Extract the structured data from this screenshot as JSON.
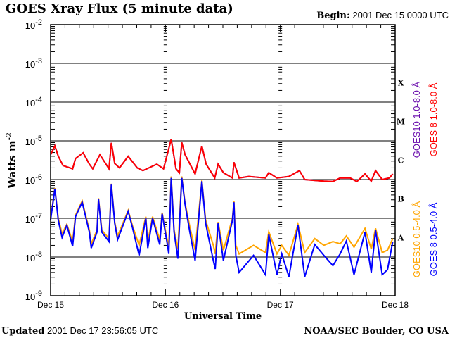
{
  "chart_data": {
    "type": "line",
    "title": "GOES Xray Flux (5 minute data)",
    "begin_label": "Begin:",
    "begin_value": "2001 Dec 15 0000 UTC",
    "xlabel": "Universal Time",
    "ylabel": "Watts m",
    "ylabel_sup": "-2",
    "yscale": "log",
    "ylim": [
      1e-09,
      0.01
    ],
    "xlim_hours": [
      0,
      72
    ],
    "x_ticks": [
      {
        "hour": 0,
        "label": "Dec 15"
      },
      {
        "hour": 24,
        "label": "Dec 16"
      },
      {
        "hour": 48,
        "label": "Dec 17"
      },
      {
        "hour": 72,
        "label": "Dec 18"
      }
    ],
    "y_ticks": [
      {
        "exp": -2,
        "base": "10",
        "sup": "-2"
      },
      {
        "exp": -3,
        "base": "10",
        "sup": "-3"
      },
      {
        "exp": -4,
        "base": "10",
        "sup": "-4"
      },
      {
        "exp": -5,
        "base": "10",
        "sup": "-5"
      },
      {
        "exp": -6,
        "base": "10",
        "sup": "-6"
      },
      {
        "exp": -7,
        "base": "10",
        "sup": "-7"
      },
      {
        "exp": -8,
        "base": "10",
        "sup": "-8"
      },
      {
        "exp": -9,
        "base": "10",
        "sup": "-9"
      }
    ],
    "flare_classes": [
      {
        "label": "X",
        "exp": -3.5
      },
      {
        "label": "M",
        "exp": -4.5
      },
      {
        "label": "C",
        "exp": -5.5
      },
      {
        "label": "B",
        "exp": -6.5
      },
      {
        "label": "A",
        "exp": -7.5
      }
    ],
    "grid": true,
    "legend_placement": "right (rotated)",
    "series": [
      {
        "name": "GOES10 1.0-8.0 Å",
        "color": "#6a0dad",
        "points": [
          [
            0,
            4.4e-06
          ],
          [
            0.9,
            7.4e-06
          ],
          [
            1.6,
            4e-06
          ],
          [
            2.6,
            2.3e-06
          ],
          [
            4.6,
            1.9e-06
          ],
          [
            5.2,
            3.5e-06
          ],
          [
            6.8,
            4.9e-06
          ],
          [
            8.1,
            2.5e-06
          ],
          [
            8.8,
            1.9e-06
          ],
          [
            10.3,
            4.4e-06
          ],
          [
            12.2,
            1.9e-06
          ],
          [
            12.7,
            8.9e-06
          ],
          [
            13.4,
            2.6e-06
          ],
          [
            14.4,
            2e-06
          ],
          [
            16.2,
            4e-06
          ],
          [
            18.1,
            2e-06
          ],
          [
            19.3,
            1.7e-06
          ],
          [
            22.2,
            2.5e-06
          ],
          [
            23.6,
            1.9e-06
          ],
          [
            25.2,
            1.1e-05
          ],
          [
            26.2,
            1.9e-06
          ],
          [
            26.9,
            1.5e-06
          ],
          [
            27.4,
            9.1e-06
          ],
          [
            28.1,
            4.4e-06
          ],
          [
            30.2,
            1.4e-06
          ],
          [
            31.6,
            7.4e-06
          ],
          [
            32.5,
            2.5e-06
          ],
          [
            34.3,
            1.1e-06
          ],
          [
            35.0,
            2.5e-06
          ],
          [
            36.1,
            1.5e-06
          ],
          [
            38.0,
            1.1e-06
          ],
          [
            38.3,
            2.8e-06
          ],
          [
            39.4,
            1.1e-06
          ],
          [
            41.4,
            1.2e-06
          ],
          [
            44.9,
            1.1e-06
          ],
          [
            45.6,
            1.5e-06
          ],
          [
            47.3,
            1.1e-06
          ],
          [
            49.8,
            1.2e-06
          ],
          [
            52.0,
            1.7e-06
          ],
          [
            53.1,
            1e-06
          ],
          [
            57.1,
            9.1e-07
          ],
          [
            59.0,
            8.9e-07
          ],
          [
            60.5,
            1.1e-06
          ],
          [
            62.6,
            1.1e-06
          ],
          [
            64.0,
            8.9e-07
          ],
          [
            65.7,
            1.4e-06
          ],
          [
            67.0,
            9.1e-07
          ],
          [
            67.9,
            1.7e-06
          ],
          [
            69.3,
            1e-06
          ],
          [
            70.8,
            1.1e-06
          ],
          [
            71.5,
            1.4e-06
          ]
        ]
      },
      {
        "name": "GOES 8 1.0-8.0 Å",
        "color": "#ff0000",
        "points": [
          [
            0,
            4.4e-06
          ],
          [
            0.9,
            7.4e-06
          ],
          [
            1.6,
            4e-06
          ],
          [
            2.6,
            2.3e-06
          ],
          [
            4.6,
            1.9e-06
          ],
          [
            5.2,
            3.5e-06
          ],
          [
            6.8,
            4.9e-06
          ],
          [
            8.1,
            2.5e-06
          ],
          [
            8.8,
            1.9e-06
          ],
          [
            10.3,
            4.4e-06
          ],
          [
            12.2,
            1.9e-06
          ],
          [
            12.7,
            8.9e-06
          ],
          [
            13.4,
            2.6e-06
          ],
          [
            14.4,
            2e-06
          ],
          [
            16.2,
            4e-06
          ],
          [
            18.1,
            2e-06
          ],
          [
            19.3,
            1.7e-06
          ],
          [
            22.2,
            2.5e-06
          ],
          [
            23.6,
            1.9e-06
          ],
          [
            25.2,
            1.1e-05
          ],
          [
            26.2,
            1.9e-06
          ],
          [
            26.9,
            1.5e-06
          ],
          [
            27.4,
            9.1e-06
          ],
          [
            28.1,
            4.4e-06
          ],
          [
            30.2,
            1.4e-06
          ],
          [
            31.6,
            7.4e-06
          ],
          [
            32.5,
            2.5e-06
          ],
          [
            34.3,
            1.1e-06
          ],
          [
            35.0,
            2.5e-06
          ],
          [
            36.1,
            1.5e-06
          ],
          [
            38.0,
            1.1e-06
          ],
          [
            38.3,
            2.8e-06
          ],
          [
            39.4,
            1.1e-06
          ],
          [
            41.4,
            1.2e-06
          ],
          [
            44.9,
            1.1e-06
          ],
          [
            45.6,
            1.5e-06
          ],
          [
            47.3,
            1.1e-06
          ],
          [
            49.8,
            1.2e-06
          ],
          [
            52.0,
            1.7e-06
          ],
          [
            53.1,
            1e-06
          ],
          [
            57.1,
            9.1e-07
          ],
          [
            59.0,
            8.9e-07
          ],
          [
            60.5,
            1.1e-06
          ],
          [
            62.6,
            1.1e-06
          ],
          [
            64.0,
            8.9e-07
          ],
          [
            65.7,
            1.4e-06
          ],
          [
            67.0,
            9.1e-07
          ],
          [
            67.9,
            1.7e-06
          ],
          [
            69.3,
            1e-06
          ],
          [
            70.8,
            1.1e-06
          ],
          [
            71.5,
            1.4e-06
          ]
        ]
      },
      {
        "name": "GOES10 0.5-4.0 Å",
        "color": "#ffa500",
        "points": [
          [
            0,
            1e-07
          ],
          [
            0.9,
            6e-07
          ],
          [
            1.6,
            1e-07
          ],
          [
            2.4,
            4e-08
          ],
          [
            3.4,
            7e-08
          ],
          [
            4.6,
            2.5e-08
          ],
          [
            5.2,
            1.2e-07
          ],
          [
            6.6,
            2.8e-07
          ],
          [
            8.1,
            5e-08
          ],
          [
            8.5,
            2.2e-08
          ],
          [
            9.7,
            5e-08
          ],
          [
            10.0,
            3.3e-07
          ],
          [
            10.7,
            5e-08
          ],
          [
            12.2,
            3e-08
          ],
          [
            12.7,
            7.8e-07
          ],
          [
            13.4,
            8e-08
          ],
          [
            14.0,
            3.5e-08
          ],
          [
            16.2,
            1.6e-07
          ],
          [
            17.1,
            6.5e-08
          ],
          [
            18.5,
            2e-08
          ],
          [
            19.9,
            1.1e-07
          ],
          [
            20.3,
            2.5e-08
          ],
          [
            21.3,
            1.1e-07
          ],
          [
            22.8,
            2.8e-08
          ],
          [
            23.3,
            1.4e-07
          ],
          [
            24.3,
            3e-08
          ],
          [
            24.7,
            2e-08
          ],
          [
            25.2,
            1.2e-06
          ],
          [
            25.8,
            5e-08
          ],
          [
            26.6,
            1.6e-08
          ],
          [
            27.4,
            1.2e-06
          ],
          [
            28.1,
            2.5e-07
          ],
          [
            29.1,
            6e-08
          ],
          [
            30.2,
            1.5e-08
          ],
          [
            31.6,
            9.5e-07
          ],
          [
            32.4,
            9e-08
          ],
          [
            34.0,
            2e-08
          ],
          [
            34.4,
            1.2e-08
          ],
          [
            35.0,
            8e-08
          ],
          [
            36.1,
            1.5e-08
          ],
          [
            38.0,
            1e-07
          ],
          [
            38.3,
            2.8e-07
          ],
          [
            38.7,
            2e-08
          ],
          [
            39.4,
            1.2e-08
          ],
          [
            42.4,
            2e-08
          ],
          [
            44.9,
            1.3e-08
          ],
          [
            45.6,
            4.5e-08
          ],
          [
            47.3,
            1.2e-08
          ],
          [
            48.3,
            2e-08
          ],
          [
            49.8,
            1.1e-08
          ],
          [
            51.7,
            7e-08
          ],
          [
            53.1,
            1.3e-08
          ],
          [
            55.2,
            3e-08
          ],
          [
            57.1,
            2e-08
          ],
          [
            59.0,
            2.5e-08
          ],
          [
            60.5,
            2.2e-08
          ],
          [
            61.8,
            3.5e-08
          ],
          [
            63.4,
            1.8e-08
          ],
          [
            65.7,
            5.5e-08
          ],
          [
            67.0,
            1.6e-08
          ],
          [
            67.9,
            5.5e-08
          ],
          [
            69.3,
            1.3e-08
          ],
          [
            70.4,
            1.5e-08
          ],
          [
            71.5,
            3e-08
          ]
        ]
      },
      {
        "name": "GOES 8 0.5-4.0 Å",
        "color": "#0000ff",
        "points": [
          [
            0,
            9.1e-08
          ],
          [
            0.9,
            5.8e-07
          ],
          [
            1.6,
            8.9e-08
          ],
          [
            2.4,
            3.2e-08
          ],
          [
            3.4,
            6.6e-08
          ],
          [
            4.6,
            1.9e-08
          ],
          [
            5.2,
            1.1e-07
          ],
          [
            6.6,
            2.6e-07
          ],
          [
            8.1,
            4.4e-08
          ],
          [
            8.5,
            1.7e-08
          ],
          [
            9.7,
            4.4e-08
          ],
          [
            10.0,
            3.1e-07
          ],
          [
            10.7,
            4.4e-08
          ],
          [
            12.2,
            2.5e-08
          ],
          [
            12.7,
            7.4e-07
          ],
          [
            13.4,
            7.4e-08
          ],
          [
            14.0,
            2.8e-08
          ],
          [
            16.2,
            1.5e-07
          ],
          [
            17.1,
            5.8e-08
          ],
          [
            18.5,
            1.1e-08
          ],
          [
            19.9,
            1e-07
          ],
          [
            20.3,
            1.7e-08
          ],
          [
            21.3,
            1e-07
          ],
          [
            22.8,
            2.1e-08
          ],
          [
            23.3,
            1.3e-07
          ],
          [
            24.3,
            2.5e-08
          ],
          [
            24.7,
            1.2e-08
          ],
          [
            25.2,
            1.1e-06
          ],
          [
            25.8,
            4.4e-08
          ],
          [
            26.6,
            9.1e-09
          ],
          [
            27.4,
            1.1e-06
          ],
          [
            28.1,
            2.3e-07
          ],
          [
            29.1,
            4.4e-08
          ],
          [
            30.2,
            8.1e-09
          ],
          [
            31.6,
            9.1e-07
          ],
          [
            32.4,
            7.4e-08
          ],
          [
            34.0,
            8.1e-09
          ],
          [
            34.4,
            4.9e-09
          ],
          [
            35.0,
            7.4e-08
          ],
          [
            36.1,
            8.1e-09
          ],
          [
            38.0,
            8.9e-08
          ],
          [
            38.3,
            2.6e-07
          ],
          [
            38.7,
            1.1e-08
          ],
          [
            39.4,
            4e-09
          ],
          [
            42.4,
            1.1e-08
          ],
          [
            44.9,
            3.5e-09
          ],
          [
            45.6,
            3.8e-08
          ],
          [
            47.3,
            3.5e-09
          ],
          [
            48.3,
            1.2e-08
          ],
          [
            49.8,
            3.1e-09
          ],
          [
            51.7,
            6.6e-08
          ],
          [
            53.1,
            3.1e-09
          ],
          [
            55.2,
            2.1e-08
          ],
          [
            57.1,
            1.1e-08
          ],
          [
            59.0,
            6e-09
          ],
          [
            60.5,
            1.2e-08
          ],
          [
            61.8,
            2.6e-08
          ],
          [
            63.4,
            3.5e-09
          ],
          [
            65.7,
            4.4e-08
          ],
          [
            67.0,
            4e-09
          ],
          [
            67.9,
            4.9e-08
          ],
          [
            69.3,
            3.5e-09
          ],
          [
            70.4,
            4.7e-09
          ],
          [
            71.5,
            2.5e-08
          ]
        ]
      }
    ]
  },
  "footer": {
    "updated_label": "Updated",
    "updated_value": "2001 Dec 17 23:56:05 UTC",
    "credit": "NOAA/SEC Boulder, CO USA"
  }
}
